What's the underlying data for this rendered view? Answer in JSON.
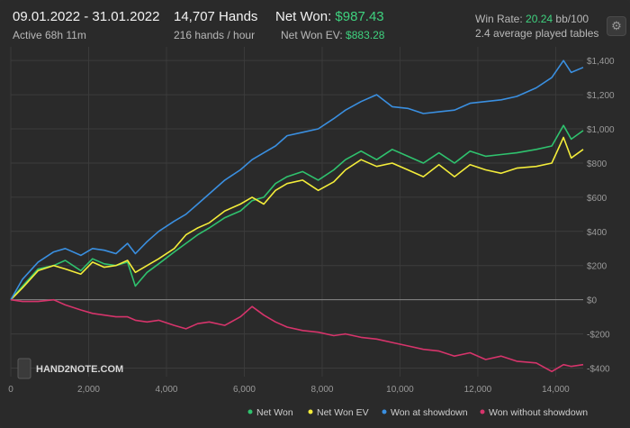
{
  "header": {
    "date_range": "09.01.2022 - 31.01.2022",
    "active": "Active 68h 11m",
    "hands": "14,707 Hands",
    "hands_rate": "216 hands / hour",
    "net_won_label": "Net Won:",
    "net_won_value": "$987.43",
    "net_won_ev_label": "Net Won  EV:",
    "net_won_ev_value": "$883.28",
    "win_rate_label": "Win Rate:",
    "win_rate_value": "20.24",
    "win_rate_unit": "bb/100",
    "tables": "2.4 average played tables"
  },
  "settings_icon": "gear-icon",
  "logo_text": "HAND2NOTE.COM",
  "colors": {
    "background": "#2a2a2a",
    "net_won": "#2fc26e",
    "net_won_ev": "#f3ec3a",
    "showdown": "#3a8fe0",
    "non_showdown": "#d6346b",
    "accent_green": "#3fd27f"
  },
  "chart_data": {
    "type": "line",
    "xlim": [
      0,
      14707
    ],
    "ylim": [
      -450,
      1480
    ],
    "x_ticks": [
      0,
      2000,
      4000,
      6000,
      8000,
      10000,
      12000,
      14000
    ],
    "x_tick_labels": [
      "0",
      "2,000",
      "4,000",
      "6,000",
      "8,000",
      "10,000",
      "12,000",
      "14,000"
    ],
    "y_ticks": [
      -400,
      -200,
      0,
      200,
      400,
      600,
      800,
      1000,
      1200,
      1400
    ],
    "y_tick_labels": [
      "-$400",
      "-$200",
      "$0",
      "$200",
      "$400",
      "$600",
      "$800",
      "$1,000",
      "$1,200",
      "$1,400"
    ],
    "grid": true,
    "legend_position": "bottom-right",
    "series": [
      {
        "name": "Net Won",
        "color": "#2fc26e",
        "x": [
          0,
          300,
          700,
          1100,
          1400,
          1800,
          2100,
          2400,
          2700,
          3000,
          3200,
          3500,
          3800,
          4200,
          4500,
          4800,
          5100,
          5500,
          5900,
          6200,
          6500,
          6800,
          7100,
          7500,
          7900,
          8300,
          8600,
          9000,
          9400,
          9800,
          10200,
          10600,
          11000,
          11400,
          11800,
          12200,
          12600,
          13000,
          13500,
          13900,
          14200,
          14400,
          14707
        ],
        "y": [
          0,
          80,
          180,
          200,
          230,
          170,
          240,
          210,
          200,
          220,
          80,
          160,
          210,
          280,
          330,
          380,
          420,
          480,
          520,
          580,
          600,
          680,
          720,
          750,
          700,
          760,
          820,
          870,
          820,
          880,
          840,
          800,
          860,
          800,
          870,
          840,
          850,
          860,
          880,
          900,
          1020,
          940,
          990
        ]
      },
      {
        "name": "Net Won  EV",
        "color": "#f3ec3a",
        "x": [
          0,
          300,
          700,
          1100,
          1400,
          1800,
          2100,
          2400,
          2700,
          3000,
          3200,
          3500,
          3800,
          4200,
          4500,
          4800,
          5100,
          5500,
          5900,
          6200,
          6500,
          6800,
          7100,
          7500,
          7900,
          8300,
          8600,
          9000,
          9400,
          9800,
          10200,
          10600,
          11000,
          11400,
          11800,
          12200,
          12600,
          13000,
          13500,
          13900,
          14200,
          14400,
          14707
        ],
        "y": [
          0,
          70,
          170,
          200,
          180,
          150,
          220,
          190,
          200,
          230,
          160,
          200,
          240,
          300,
          380,
          420,
          450,
          520,
          560,
          600,
          560,
          640,
          680,
          700,
          640,
          690,
          760,
          820,
          780,
          800,
          760,
          720,
          790,
          720,
          790,
          760,
          740,
          770,
          780,
          800,
          950,
          830,
          880
        ]
      },
      {
        "name": "Won at showdown",
        "color": "#3a8fe0",
        "x": [
          0,
          300,
          700,
          1100,
          1400,
          1800,
          2100,
          2400,
          2700,
          3000,
          3200,
          3500,
          3800,
          4200,
          4500,
          4800,
          5100,
          5500,
          5900,
          6200,
          6500,
          6800,
          7100,
          7500,
          7900,
          8300,
          8600,
          9000,
          9400,
          9800,
          10200,
          10600,
          11000,
          11400,
          11800,
          12200,
          12600,
          13000,
          13500,
          13900,
          14200,
          14400,
          14707
        ],
        "y": [
          0,
          120,
          220,
          280,
          300,
          260,
          300,
          290,
          270,
          330,
          270,
          340,
          400,
          460,
          500,
          560,
          620,
          700,
          760,
          820,
          860,
          900,
          960,
          980,
          1000,
          1060,
          1110,
          1160,
          1200,
          1130,
          1120,
          1090,
          1100,
          1110,
          1150,
          1160,
          1170,
          1190,
          1240,
          1300,
          1400,
          1330,
          1360
        ]
      },
      {
        "name": "Won without showdown",
        "color": "#d6346b",
        "x": [
          0,
          300,
          700,
          1100,
          1400,
          1800,
          2100,
          2400,
          2700,
          3000,
          3200,
          3500,
          3800,
          4200,
          4500,
          4800,
          5100,
          5500,
          5900,
          6200,
          6500,
          6800,
          7100,
          7500,
          7900,
          8300,
          8600,
          9000,
          9400,
          9800,
          10200,
          10600,
          11000,
          11400,
          11800,
          12200,
          12600,
          13000,
          13500,
          13900,
          14200,
          14400,
          14707
        ],
        "y": [
          0,
          -10,
          -10,
          0,
          -30,
          -60,
          -80,
          -90,
          -100,
          -100,
          -120,
          -130,
          -120,
          -150,
          -170,
          -140,
          -130,
          -150,
          -100,
          -40,
          -90,
          -130,
          -160,
          -180,
          -190,
          -210,
          -200,
          -220,
          -230,
          -250,
          -270,
          -290,
          -300,
          -330,
          -310,
          -350,
          -330,
          -360,
          -370,
          -420,
          -380,
          -390,
          -380
        ]
      }
    ]
  }
}
